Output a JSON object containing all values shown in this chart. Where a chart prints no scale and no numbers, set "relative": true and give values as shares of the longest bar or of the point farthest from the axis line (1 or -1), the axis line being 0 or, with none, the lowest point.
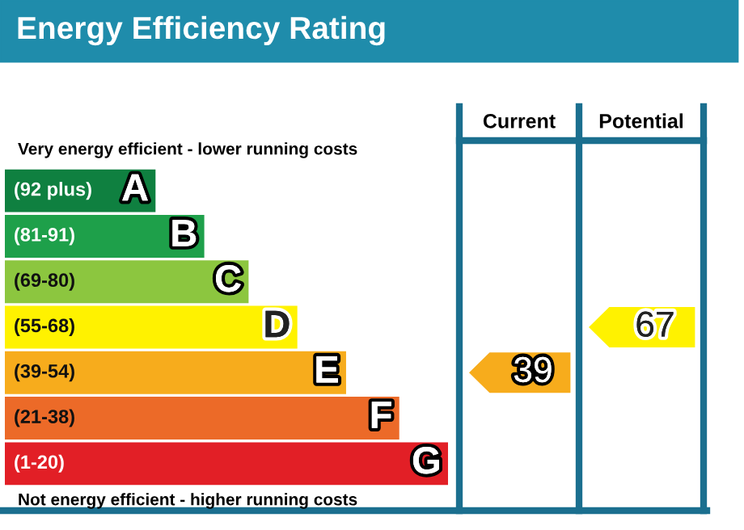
{
  "chart_data": [
    {
      "type": "bar",
      "orientation": "horizontal",
      "relative": true,
      "title": "Energy Efficiency Rating",
      "categories": [
        "(92 plus)",
        "(81-91)",
        "(69-80)",
        "(55-68)",
        "(39-54)",
        "(21-38)",
        "(1-20)"
      ],
      "values": [
        0.34,
        0.45,
        0.55,
        0.66,
        0.77,
        0.89,
        1
      ],
      "colors": [
        "#0f8040",
        "#1ea04a",
        "#8cc63f",
        "#fff200",
        "#f7ac1c",
        "#ec6a28",
        "#e21f26"
      ],
      "annotations": [
        "Very energy efficient - lower running costs",
        "Not energy efficient - higher running costs",
        {
          "text": "A",
          "x": 0.34,
          "y": "(92 plus)"
        },
        {
          "text": "B",
          "x": 0.45,
          "y": "(81-91)"
        },
        {
          "text": "C",
          "x": 0.55,
          "y": "(69-80)"
        },
        {
          "text": "D",
          "x": 0.66,
          "y": "(55-68)"
        },
        {
          "text": "E",
          "x": 0.77,
          "y": "(39-54)"
        },
        {
          "text": "F",
          "x": 0.89,
          "y": "(21-38)"
        },
        {
          "text": "G",
          "x": 1,
          "y": "(1-20)"
        }
      ]
    },
    {
      "type": "other",
      "categories": [
        "Current",
        "Potential"
      ],
      "values": [
        39,
        67
      ],
      "colors": [
        "#f7ac1c",
        "#fff200"
      ],
      "data_labels": true
    }
  ]
}
